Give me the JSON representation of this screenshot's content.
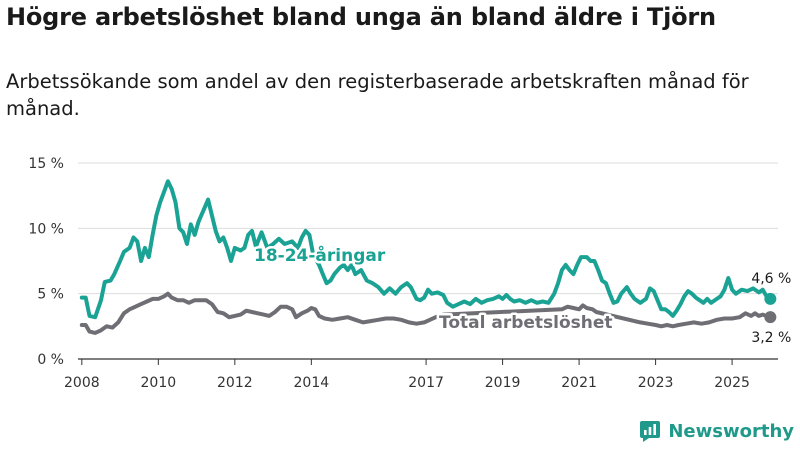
{
  "title": "Högre arbetslöshet bland unga än bland äldre i Tjörn",
  "subtitle": "Arbetssökande som andel av den registerbaserade arbetskraften månad för månad.",
  "brand": {
    "name": "Newsworthy",
    "icon": "newsworthy-logo-icon",
    "color": "#1f9a8a"
  },
  "chart_data": {
    "type": "line",
    "title": "Högre arbetslöshet bland unga än bland äldre i Tjörn",
    "subtitle": "Arbetssökande som andel av den registerbaserade arbetskraften månad för månad.",
    "xlabel": "",
    "ylabel": "",
    "ylim": [
      0,
      15
    ],
    "xlim": [
      2007.9,
      2026.2
    ],
    "y_ticks": [
      0,
      5,
      10,
      15
    ],
    "y_tick_labels": [
      "0 %",
      "5 %",
      "10 %",
      "15 %"
    ],
    "x_ticks": [
      2008,
      2010,
      2012,
      2014,
      2017,
      2019,
      2021,
      2023,
      2025
    ],
    "x_tick_labels": [
      "2008",
      "2010",
      "2012",
      "2014",
      "2017",
      "2019",
      "2021",
      "2023",
      "2025"
    ],
    "grid": true,
    "legend": "inline labels",
    "series": [
      {
        "name": "18-24-åringar",
        "color": "#1aa394",
        "end_label": "4,6 %",
        "points": [
          [
            2008.0,
            4.7
          ],
          [
            2008.1,
            4.7
          ],
          [
            2008.2,
            3.3
          ],
          [
            2008.35,
            3.2
          ],
          [
            2008.5,
            4.5
          ],
          [
            2008.6,
            5.9
          ],
          [
            2008.75,
            6.0
          ],
          [
            2008.85,
            6.5
          ],
          [
            2009.0,
            7.5
          ],
          [
            2009.1,
            8.2
          ],
          [
            2009.25,
            8.5
          ],
          [
            2009.35,
            9.3
          ],
          [
            2009.45,
            9.0
          ],
          [
            2009.55,
            7.5
          ],
          [
            2009.65,
            8.5
          ],
          [
            2009.75,
            7.8
          ],
          [
            2009.85,
            9.5
          ],
          [
            2009.95,
            11.0
          ],
          [
            2010.05,
            12.0
          ],
          [
            2010.15,
            12.8
          ],
          [
            2010.25,
            13.6
          ],
          [
            2010.35,
            13.0
          ],
          [
            2010.45,
            12.0
          ],
          [
            2010.55,
            10.0
          ],
          [
            2010.65,
            9.7
          ],
          [
            2010.75,
            8.8
          ],
          [
            2010.85,
            10.3
          ],
          [
            2010.95,
            9.5
          ],
          [
            2011.05,
            10.5
          ],
          [
            2011.2,
            11.5
          ],
          [
            2011.3,
            12.2
          ],
          [
            2011.4,
            11.0
          ],
          [
            2011.5,
            9.8
          ],
          [
            2011.6,
            9.0
          ],
          [
            2011.7,
            9.3
          ],
          [
            2011.8,
            8.5
          ],
          [
            2011.9,
            7.5
          ],
          [
            2012.0,
            8.5
          ],
          [
            2012.15,
            8.3
          ],
          [
            2012.25,
            8.5
          ],
          [
            2012.35,
            9.5
          ],
          [
            2012.45,
            9.8
          ],
          [
            2012.55,
            8.6
          ],
          [
            2012.7,
            9.7
          ],
          [
            2012.85,
            8.5
          ],
          [
            2013.0,
            8.8
          ],
          [
            2013.15,
            9.2
          ],
          [
            2013.3,
            8.8
          ],
          [
            2013.5,
            9.0
          ],
          [
            2013.65,
            8.5
          ],
          [
            2013.75,
            9.3
          ],
          [
            2013.85,
            9.8
          ],
          [
            2013.95,
            9.5
          ],
          [
            2014.05,
            8.0
          ],
          [
            2014.2,
            7.2
          ],
          [
            2014.3,
            6.5
          ],
          [
            2014.4,
            5.8
          ],
          [
            2014.5,
            6.0
          ],
          [
            2014.6,
            6.5
          ],
          [
            2014.75,
            7.0
          ],
          [
            2014.85,
            7.2
          ],
          [
            2014.95,
            6.8
          ],
          [
            2015.05,
            7.2
          ],
          [
            2015.15,
            6.5
          ],
          [
            2015.3,
            6.8
          ],
          [
            2015.45,
            6.0
          ],
          [
            2015.6,
            5.8
          ],
          [
            2015.75,
            5.5
          ],
          [
            2015.9,
            5.0
          ],
          [
            2016.05,
            5.4
          ],
          [
            2016.2,
            5.0
          ],
          [
            2016.35,
            5.5
          ],
          [
            2016.5,
            5.8
          ],
          [
            2016.6,
            5.5
          ],
          [
            2016.75,
            4.6
          ],
          [
            2016.85,
            4.5
          ],
          [
            2016.95,
            4.7
          ],
          [
            2017.05,
            5.3
          ],
          [
            2017.15,
            5.0
          ],
          [
            2017.3,
            5.1
          ],
          [
            2017.45,
            4.9
          ],
          [
            2017.55,
            4.3
          ],
          [
            2017.7,
            4.0
          ],
          [
            2017.85,
            4.2
          ],
          [
            2018.0,
            4.4
          ],
          [
            2018.15,
            4.2
          ],
          [
            2018.3,
            4.6
          ],
          [
            2018.45,
            4.3
          ],
          [
            2018.6,
            4.5
          ],
          [
            2018.75,
            4.6
          ],
          [
            2018.9,
            4.8
          ],
          [
            2019.0,
            4.6
          ],
          [
            2019.1,
            4.9
          ],
          [
            2019.2,
            4.6
          ],
          [
            2019.3,
            4.4
          ],
          [
            2019.45,
            4.5
          ],
          [
            2019.6,
            4.3
          ],
          [
            2019.75,
            4.5
          ],
          [
            2019.9,
            4.3
          ],
          [
            2020.05,
            4.4
          ],
          [
            2020.2,
            4.3
          ],
          [
            2020.35,
            5.0
          ],
          [
            2020.45,
            5.8
          ],
          [
            2020.55,
            6.8
          ],
          [
            2020.65,
            7.2
          ],
          [
            2020.75,
            6.8
          ],
          [
            2020.85,
            6.5
          ],
          [
            2020.95,
            7.2
          ],
          [
            2021.05,
            7.8
          ],
          [
            2021.2,
            7.8
          ],
          [
            2021.3,
            7.5
          ],
          [
            2021.4,
            7.5
          ],
          [
            2021.5,
            6.8
          ],
          [
            2021.6,
            6.0
          ],
          [
            2021.7,
            5.8
          ],
          [
            2021.8,
            5.0
          ],
          [
            2021.9,
            4.3
          ],
          [
            2022.0,
            4.4
          ],
          [
            2022.1,
            5.0
          ],
          [
            2022.25,
            5.5
          ],
          [
            2022.35,
            5.0
          ],
          [
            2022.45,
            4.6
          ],
          [
            2022.6,
            4.3
          ],
          [
            2022.75,
            4.6
          ],
          [
            2022.85,
            5.4
          ],
          [
            2022.95,
            5.2
          ],
          [
            2023.05,
            4.5
          ],
          [
            2023.15,
            3.8
          ],
          [
            2023.25,
            3.8
          ],
          [
            2023.35,
            3.6
          ],
          [
            2023.45,
            3.3
          ],
          [
            2023.55,
            3.7
          ],
          [
            2023.65,
            4.2
          ],
          [
            2023.75,
            4.8
          ],
          [
            2023.85,
            5.2
          ],
          [
            2023.95,
            5.0
          ],
          [
            2024.05,
            4.7
          ],
          [
            2024.15,
            4.5
          ],
          [
            2024.25,
            4.3
          ],
          [
            2024.35,
            4.6
          ],
          [
            2024.45,
            4.3
          ],
          [
            2024.6,
            4.6
          ],
          [
            2024.7,
            4.8
          ],
          [
            2024.8,
            5.3
          ],
          [
            2024.9,
            6.2
          ],
          [
            2025.0,
            5.3
          ],
          [
            2025.1,
            5.0
          ],
          [
            2025.25,
            5.3
          ],
          [
            2025.4,
            5.2
          ],
          [
            2025.55,
            5.4
          ],
          [
            2025.7,
            5.1
          ],
          [
            2025.8,
            5.3
          ],
          [
            2025.9,
            4.8
          ],
          [
            2026.0,
            4.6
          ]
        ]
      },
      {
        "name": "Total arbetslöshet",
        "color": "#6e6e74",
        "end_label": "3,2 %",
        "points": [
          [
            2008.0,
            2.6
          ],
          [
            2008.1,
            2.6
          ],
          [
            2008.2,
            2.1
          ],
          [
            2008.35,
            2.0
          ],
          [
            2008.5,
            2.2
          ],
          [
            2008.65,
            2.5
          ],
          [
            2008.8,
            2.4
          ],
          [
            2008.95,
            2.8
          ],
          [
            2009.1,
            3.5
          ],
          [
            2009.25,
            3.8
          ],
          [
            2009.4,
            4.0
          ],
          [
            2009.55,
            4.2
          ],
          [
            2009.7,
            4.4
          ],
          [
            2009.85,
            4.6
          ],
          [
            2010.0,
            4.6
          ],
          [
            2010.15,
            4.8
          ],
          [
            2010.25,
            5.0
          ],
          [
            2010.35,
            4.7
          ],
          [
            2010.5,
            4.5
          ],
          [
            2010.65,
            4.5
          ],
          [
            2010.8,
            4.3
          ],
          [
            2010.95,
            4.5
          ],
          [
            2011.1,
            4.5
          ],
          [
            2011.25,
            4.5
          ],
          [
            2011.4,
            4.2
          ],
          [
            2011.55,
            3.6
          ],
          [
            2011.7,
            3.5
          ],
          [
            2011.85,
            3.2
          ],
          [
            2012.0,
            3.3
          ],
          [
            2012.15,
            3.4
          ],
          [
            2012.3,
            3.7
          ],
          [
            2012.45,
            3.6
          ],
          [
            2012.6,
            3.5
          ],
          [
            2012.75,
            3.4
          ],
          [
            2012.9,
            3.3
          ],
          [
            2013.05,
            3.6
          ],
          [
            2013.2,
            4.0
          ],
          [
            2013.35,
            4.0
          ],
          [
            2013.5,
            3.8
          ],
          [
            2013.6,
            3.2
          ],
          [
            2013.75,
            3.5
          ],
          [
            2013.9,
            3.7
          ],
          [
            2014.0,
            3.9
          ],
          [
            2014.1,
            3.8
          ],
          [
            2014.2,
            3.3
          ],
          [
            2014.35,
            3.1
          ],
          [
            2014.55,
            3.0
          ],
          [
            2014.75,
            3.1
          ],
          [
            2014.95,
            3.2
          ],
          [
            2015.15,
            3.0
          ],
          [
            2015.35,
            2.8
          ],
          [
            2015.55,
            2.9
          ],
          [
            2015.75,
            3.0
          ],
          [
            2015.95,
            3.1
          ],
          [
            2016.15,
            3.1
          ],
          [
            2016.35,
            3.0
          ],
          [
            2016.55,
            2.8
          ],
          [
            2016.75,
            2.7
          ],
          [
            2016.95,
            2.8
          ],
          [
            2017.1,
            3.0
          ],
          [
            2017.25,
            3.2
          ],
          [
            2017.45,
            3.4
          ],
          [
            2020.55,
            3.8
          ],
          [
            2020.7,
            4.0
          ],
          [
            2020.85,
            3.9
          ],
          [
            2021.0,
            3.8
          ],
          [
            2021.1,
            4.1
          ],
          [
            2021.2,
            3.9
          ],
          [
            2021.35,
            3.8
          ],
          [
            2021.45,
            3.6
          ],
          [
            2022.6,
            2.8
          ],
          [
            2022.8,
            2.7
          ],
          [
            2023.0,
            2.6
          ],
          [
            2023.15,
            2.5
          ],
          [
            2023.3,
            2.6
          ],
          [
            2023.45,
            2.5
          ],
          [
            2023.6,
            2.6
          ],
          [
            2023.8,
            2.7
          ],
          [
            2024.0,
            2.8
          ],
          [
            2024.2,
            2.7
          ],
          [
            2024.4,
            2.8
          ],
          [
            2024.6,
            3.0
          ],
          [
            2024.8,
            3.1
          ],
          [
            2025.0,
            3.1
          ],
          [
            2025.2,
            3.2
          ],
          [
            2025.35,
            3.5
          ],
          [
            2025.5,
            3.3
          ],
          [
            2025.6,
            3.5
          ],
          [
            2025.7,
            3.3
          ],
          [
            2025.8,
            3.4
          ],
          [
            2025.9,
            3.3
          ],
          [
            2026.0,
            3.2
          ]
        ]
      }
    ]
  }
}
